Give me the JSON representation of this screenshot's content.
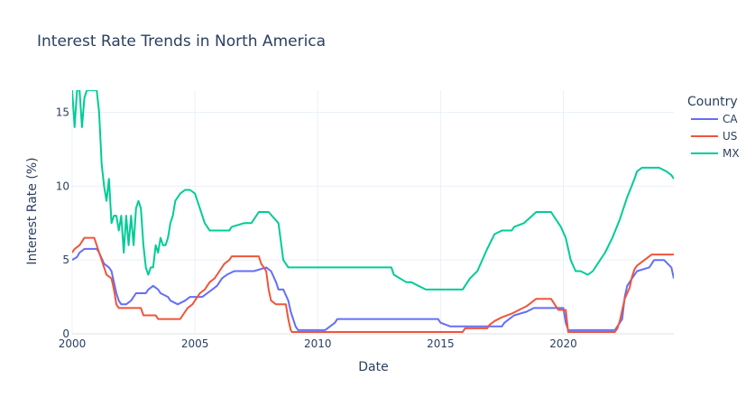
{
  "chart_data": {
    "type": "line",
    "title": "Interest Rate Trends in North America",
    "xlabel": "Date",
    "ylabel": "Interest Rate (%)",
    "xlim": [
      2000.0,
      2024.5
    ],
    "ylim": [
      0,
      16.5
    ],
    "xticks": [
      2000,
      2005,
      2010,
      2015,
      2020
    ],
    "xtick_labels": [
      "2000",
      "2005",
      "2010",
      "2015",
      "2020"
    ],
    "yticks": [
      0,
      5,
      10,
      15
    ],
    "ytick_labels": [
      "0",
      "5",
      "10",
      "15"
    ],
    "grid": true,
    "legend": {
      "title": "Country",
      "placement": "right"
    },
    "series": [
      {
        "name": "CA",
        "color": "#636efa",
        "x": [
          2000.0,
          2000.2,
          2000.3,
          2000.5,
          2000.7,
          2000.9,
          2001.0,
          2001.1,
          2001.3,
          2001.5,
          2001.6,
          2001.7,
          2001.8,
          2001.9,
          2002.0,
          2002.2,
          2002.4,
          2002.6,
          2002.8,
          2003.0,
          2003.1,
          2003.3,
          2003.5,
          2003.6,
          2003.9,
          2004.0,
          2004.3,
          2004.6,
          2004.8,
          2005.0,
          2005.3,
          2005.5,
          2005.7,
          2005.9,
          2006.1,
          2006.3,
          2006.6,
          2007.0,
          2007.4,
          2007.9,
          2008.1,
          2008.3,
          2008.4,
          2008.6,
          2008.8,
          2008.9,
          2009.0,
          2009.1,
          2009.2,
          2009.3,
          2010.3,
          2010.5,
          2010.7,
          2010.8,
          2014.9,
          2015.0,
          2015.4,
          2015.5,
          2017.5,
          2017.6,
          2017.8,
          2018.0,
          2018.5,
          2018.8,
          2020.0,
          2020.1,
          2020.2,
          2022.1,
          2022.2,
          2022.4,
          2022.5,
          2022.6,
          2022.8,
          2023.0,
          2023.5,
          2023.7,
          2024.1,
          2024.4,
          2024.5
        ],
        "values": [
          5.0,
          5.2,
          5.5,
          5.75,
          5.75,
          5.75,
          5.75,
          5.5,
          4.75,
          4.5,
          4.25,
          3.5,
          2.75,
          2.25,
          2.0,
          2.0,
          2.25,
          2.75,
          2.75,
          2.75,
          3.0,
          3.25,
          3.0,
          2.75,
          2.5,
          2.25,
          2.0,
          2.25,
          2.5,
          2.5,
          2.5,
          2.75,
          3.0,
          3.25,
          3.75,
          4.0,
          4.25,
          4.25,
          4.25,
          4.5,
          4.25,
          3.5,
          3.0,
          3.0,
          2.25,
          1.5,
          1.0,
          0.5,
          0.25,
          0.25,
          0.25,
          0.5,
          0.75,
          1.0,
          1.0,
          0.75,
          0.5,
          0.5,
          0.5,
          0.75,
          1.0,
          1.25,
          1.5,
          1.75,
          1.75,
          0.75,
          0.25,
          0.25,
          0.5,
          1.0,
          2.5,
          3.25,
          3.75,
          4.25,
          4.5,
          5.0,
          5.0,
          4.5,
          3.75
        ]
      },
      {
        "name": "US",
        "color": "#ef553b",
        "x": [
          2000.0,
          2000.1,
          2000.3,
          2000.5,
          2000.9,
          2001.0,
          2001.1,
          2001.2,
          2001.3,
          2001.4,
          2001.6,
          2001.7,
          2001.8,
          2001.9,
          2002.0,
          2002.8,
          2002.9,
          2003.4,
          2003.5,
          2004.4,
          2004.5,
          2004.6,
          2004.7,
          2004.9,
          2005.0,
          2005.2,
          2005.4,
          2005.6,
          2005.8,
          2006.0,
          2006.2,
          2006.4,
          2006.5,
          2007.6,
          2007.7,
          2007.8,
          2007.9,
          2008.0,
          2008.1,
          2008.3,
          2008.7,
          2008.8,
          2008.9,
          2008.95,
          2015.9,
          2016.0,
          2016.9,
          2017.0,
          2017.2,
          2017.5,
          2017.9,
          2018.2,
          2018.5,
          2018.7,
          2018.9,
          2019.5,
          2019.6,
          2019.7,
          2019.8,
          2020.1,
          2020.2,
          2022.1,
          2022.2,
          2022.3,
          2022.4,
          2022.5,
          2022.7,
          2022.8,
          2022.9,
          2023.0,
          2023.2,
          2023.4,
          2023.6,
          2024.6,
          2024.7
        ],
        "values": [
          5.5,
          5.75,
          6.0,
          6.5,
          6.5,
          6.0,
          5.5,
          5.0,
          4.5,
          4.0,
          3.75,
          3.0,
          2.0,
          1.75,
          1.75,
          1.75,
          1.25,
          1.25,
          1.0,
          1.0,
          1.25,
          1.5,
          1.75,
          2.0,
          2.25,
          2.75,
          3.0,
          3.5,
          3.75,
          4.25,
          4.75,
          5.0,
          5.25,
          5.25,
          4.75,
          4.5,
          4.25,
          3.0,
          2.25,
          2.0,
          2.0,
          1.0,
          0.25,
          0.12,
          0.12,
          0.37,
          0.37,
          0.62,
          0.87,
          1.12,
          1.37,
          1.62,
          1.87,
          2.12,
          2.37,
          2.37,
          2.12,
          1.87,
          1.62,
          1.62,
          0.12,
          0.12,
          0.37,
          0.87,
          1.62,
          2.37,
          3.12,
          3.87,
          4.37,
          4.62,
          4.87,
          5.12,
          5.37,
          5.37,
          4.87
        ]
      },
      {
        "name": "MX",
        "color": "#00cc96",
        "x": [
          2000.0,
          2000.1,
          2000.2,
          2000.3,
          2000.4,
          2000.5,
          2000.6,
          2000.7,
          2000.9,
          2001.0,
          2001.1,
          2001.2,
          2001.3,
          2001.4,
          2001.5,
          2001.6,
          2001.7,
          2001.8,
          2001.9,
          2002.0,
          2002.1,
          2002.2,
          2002.3,
          2002.4,
          2002.5,
          2002.6,
          2002.7,
          2002.8,
          2002.9,
          2003.0,
          2003.1,
          2003.2,
          2003.3,
          2003.4,
          2003.5,
          2003.6,
          2003.7,
          2003.8,
          2003.9,
          2004.0,
          2004.1,
          2004.2,
          2004.4,
          2004.6,
          2004.8,
          2005.0,
          2005.2,
          2005.4,
          2005.6,
          2005.8,
          2006.0,
          2006.2,
          2006.4,
          2006.5,
          2007.0,
          2007.3,
          2007.6,
          2008.0,
          2008.4,
          2008.6,
          2008.8,
          2009.0,
          2009.2,
          2009.4,
          2009.5,
          2011.0,
          2013.0,
          2013.1,
          2013.6,
          2013.8,
          2014.4,
          2014.5,
          2015.9,
          2016.0,
          2016.2,
          2016.5,
          2016.9,
          2017.2,
          2017.5,
          2017.9,
          2018.0,
          2018.4,
          2018.9,
          2019.5,
          2019.7,
          2019.9,
          2020.1,
          2020.3,
          2020.5,
          2020.7,
          2021.0,
          2021.2,
          2021.5,
          2021.7,
          2022.0,
          2022.3,
          2022.6,
          2022.9,
          2023.0,
          2023.2,
          2023.9,
          2024.2,
          2024.4,
          2024.5
        ],
        "values": [
          16.5,
          14.0,
          16.5,
          16.5,
          14.0,
          16.0,
          16.5,
          16.5,
          16.5,
          16.5,
          15.0,
          11.5,
          10.0,
          9.0,
          10.5,
          7.5,
          8.0,
          8.0,
          7.0,
          8.0,
          5.5,
          8.0,
          6.0,
          8.0,
          6.0,
          8.5,
          9.0,
          8.5,
          6.0,
          4.5,
          4.0,
          4.5,
          4.5,
          6.0,
          5.5,
          6.5,
          6.0,
          6.0,
          6.5,
          7.5,
          8.0,
          9.0,
          9.5,
          9.75,
          9.75,
          9.5,
          8.5,
          7.5,
          7.0,
          7.0,
          7.0,
          7.0,
          7.0,
          7.25,
          7.5,
          7.5,
          8.25,
          8.25,
          7.5,
          5.0,
          4.5,
          4.5,
          4.5,
          4.5,
          4.5,
          4.5,
          4.5,
          4.0,
          3.5,
          3.5,
          3.0,
          3.0,
          3.0,
          3.25,
          3.75,
          4.25,
          5.75,
          6.75,
          7.0,
          7.0,
          7.25,
          7.5,
          8.25,
          8.25,
          7.75,
          7.25,
          6.5,
          5.0,
          4.25,
          4.25,
          4.0,
          4.25,
          5.0,
          5.5,
          6.5,
          7.75,
          9.25,
          10.5,
          11.0,
          11.25,
          11.25,
          11.0,
          10.75,
          10.5
        ]
      }
    ]
  }
}
